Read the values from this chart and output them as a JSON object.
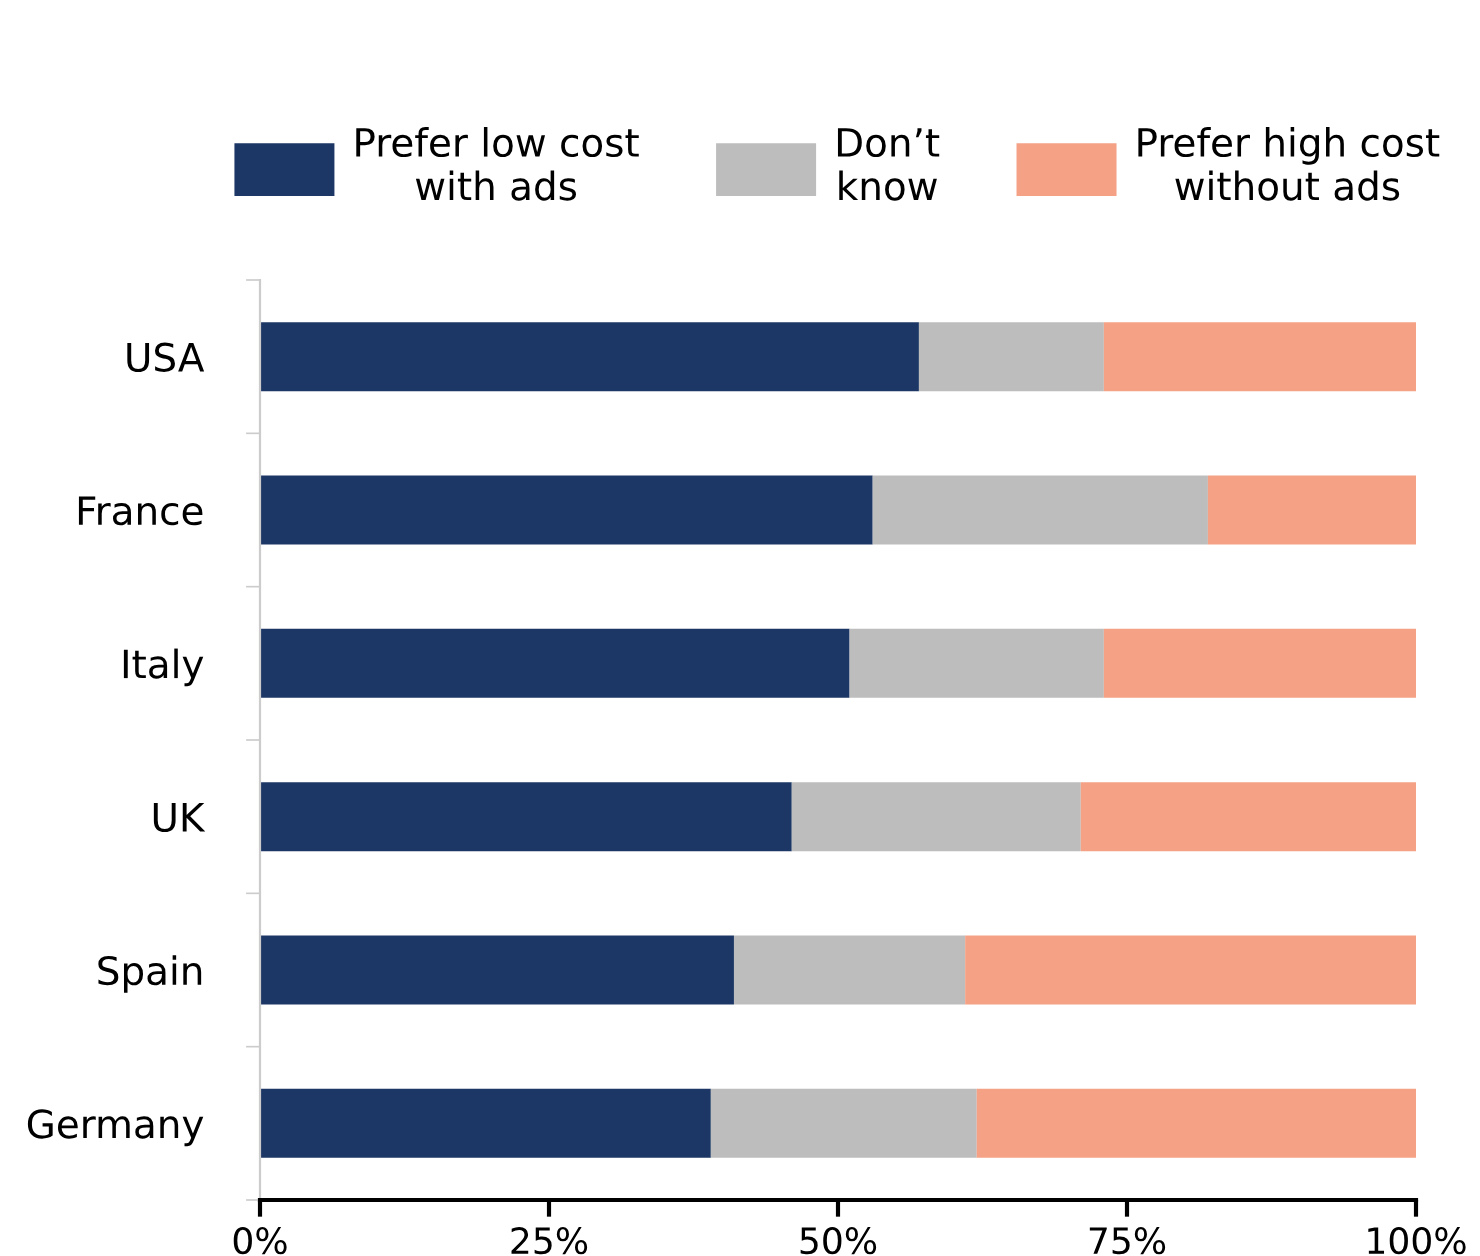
{
  "chart_data": {
    "type": "bar",
    "orientation": "horizontal",
    "stacked": true,
    "categories": [
      "USA",
      "France",
      "Italy",
      "UK",
      "Spain",
      "Germany"
    ],
    "series": [
      {
        "name": "Prefer low cost\nwith ads",
        "color": "#1c3765",
        "values": [
          57,
          53,
          51,
          46,
          41,
          39
        ]
      },
      {
        "name": "Don’t\nknow",
        "color": "#bdbdbd",
        "values": [
          16,
          29,
          22,
          25,
          20,
          23
        ]
      },
      {
        "name": "Prefer high cost\nwithout ads",
        "color": "#f4a186",
        "values": [
          27,
          18,
          27,
          29,
          39,
          38
        ]
      }
    ],
    "xlim": [
      0,
      100
    ],
    "xticks": [
      {
        "value": 0,
        "label": "0%"
      },
      {
        "value": 25,
        "label": "25%"
      },
      {
        "value": 50,
        "label": "50%"
      },
      {
        "value": 75,
        "label": "75%"
      },
      {
        "value": 100,
        "label": "100%"
      }
    ],
    "grid": false,
    "legend": "top"
  }
}
